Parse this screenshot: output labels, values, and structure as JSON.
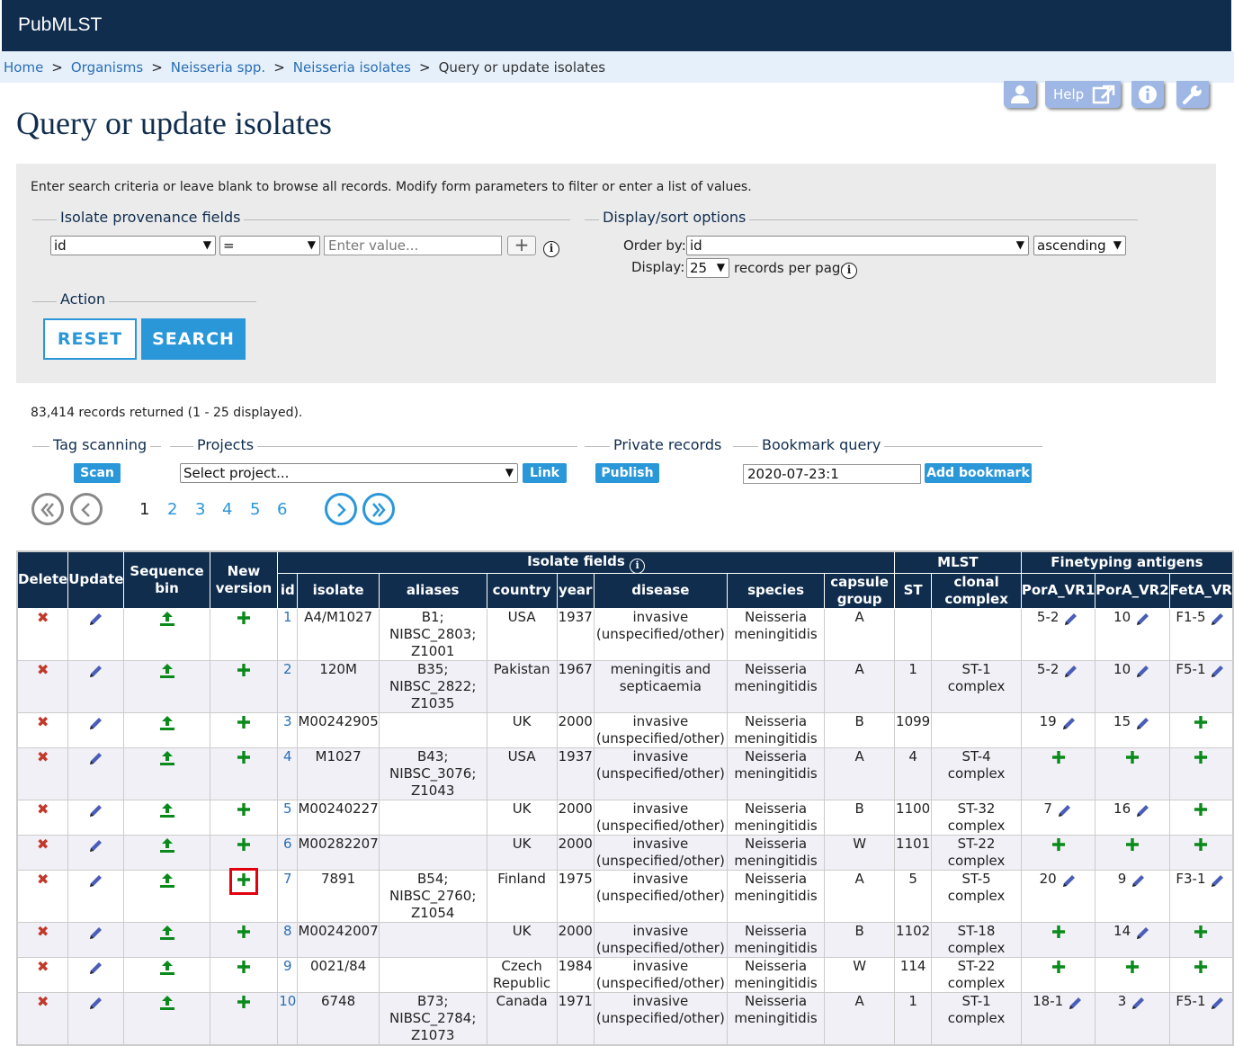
{
  "app": {
    "brand": "PubMLST"
  },
  "breadcrumb": {
    "items": [
      "Home",
      "Organisms",
      "Neisseria spp.",
      "Neisseria isolates"
    ],
    "current": "Query or update isolates"
  },
  "toolbar": {
    "help_label": "Help"
  },
  "page": {
    "title": "Query or update isolates"
  },
  "search_form": {
    "intro": "Enter search criteria or leave blank to browse all records. Modify form parameters to filter or enter a list of values.",
    "provenance_legend": "Isolate provenance fields",
    "field_select": "id",
    "operator_select": "=",
    "value_placeholder": "Enter value...",
    "display_legend": "Display/sort options",
    "order_by_label": "Order by:",
    "order_by_value": "id",
    "order_dir": "ascending",
    "display_label": "Display:",
    "display_value": "25",
    "records_per_page": "records per page",
    "action_legend": "Action",
    "reset_label": "RESET",
    "search_label": "SEARCH"
  },
  "results": {
    "count_text": "83,414 records returned (1 - 25 displayed).",
    "tag_scanning": {
      "legend": "Tag scanning",
      "button": "Scan"
    },
    "projects": {
      "legend": "Projects",
      "select": "Select project...",
      "button": "Link"
    },
    "private": {
      "legend": "Private records",
      "button": "Publish"
    },
    "bookmark": {
      "legend": "Bookmark query",
      "value": "2020-07-23:1",
      "button": "Add bookmark"
    },
    "pages": [
      "1",
      "2",
      "3",
      "4",
      "5",
      "6"
    ],
    "current_page": "1"
  },
  "table": {
    "headers": {
      "delete": "Delete",
      "update": "Update",
      "seqbin": "Sequence bin",
      "newver": "New version",
      "isolate_fields": "Isolate fields",
      "mlst": "MLST",
      "finetyping": "Finetyping antigens",
      "id": "id",
      "isolate": "isolate",
      "aliases": "aliases",
      "country": "country",
      "year": "year",
      "disease": "disease",
      "species": "species",
      "capsule": "capsule group",
      "st": "ST",
      "clonal": "clonal complex",
      "porA1": "PorA_VR1",
      "porA2": "PorA_VR2",
      "fetA": "FetA_VR"
    },
    "rows": [
      {
        "id": "1",
        "isolate": "A4/M1027",
        "aliases": "B1; NIBSC_2803; Z1001",
        "country": "USA",
        "year": "1937",
        "disease": "invasive (unspecified/other)",
        "species": "Neisseria meningitidis",
        "capsule": "A",
        "st": "",
        "cc": "",
        "p1": "5-2",
        "p2": "10",
        "f": "F1-5"
      },
      {
        "id": "2",
        "isolate": "120M",
        "aliases": "B35; NIBSC_2822; Z1035",
        "country": "Pakistan",
        "year": "1967",
        "disease": "meningitis and septicaemia",
        "species": "Neisseria meningitidis",
        "capsule": "A",
        "st": "1",
        "cc": "ST-1 complex",
        "p1": "5-2",
        "p2": "10",
        "f": "F5-1"
      },
      {
        "id": "3",
        "isolate": "M00242905",
        "aliases": "",
        "country": "UK",
        "year": "2000",
        "disease": "invasive (unspecified/other)",
        "species": "Neisseria meningitidis",
        "capsule": "B",
        "st": "1099",
        "cc": "",
        "p1": "19",
        "p2": "15",
        "f": ""
      },
      {
        "id": "4",
        "isolate": "M1027",
        "aliases": "B43; NIBSC_3076; Z1043",
        "country": "USA",
        "year": "1937",
        "disease": "invasive (unspecified/other)",
        "species": "Neisseria meningitidis",
        "capsule": "A",
        "st": "4",
        "cc": "ST-4 complex",
        "p1": "",
        "p2": "",
        "f": ""
      },
      {
        "id": "5",
        "isolate": "M00240227",
        "aliases": "",
        "country": "UK",
        "year": "2000",
        "disease": "invasive (unspecified/other)",
        "species": "Neisseria meningitidis",
        "capsule": "B",
        "st": "1100",
        "cc": "ST-32 complex",
        "p1": "7",
        "p2": "16",
        "f": ""
      },
      {
        "id": "6",
        "isolate": "M00282207",
        "aliases": "",
        "country": "UK",
        "year": "2000",
        "disease": "invasive (unspecified/other)",
        "species": "Neisseria meningitidis",
        "capsule": "W",
        "st": "1101",
        "cc": "ST-22 complex",
        "p1": "",
        "p2": "",
        "f": ""
      },
      {
        "id": "7",
        "isolate": "7891",
        "aliases": "B54; NIBSC_2760; Z1054",
        "country": "Finland",
        "year": "1975",
        "disease": "invasive (unspecified/other)",
        "species": "Neisseria meningitidis",
        "capsule": "A",
        "st": "5",
        "cc": "ST-5 complex",
        "p1": "20",
        "p2": "9",
        "f": "F3-1"
      },
      {
        "id": "8",
        "isolate": "M00242007",
        "aliases": "",
        "country": "UK",
        "year": "2000",
        "disease": "invasive (unspecified/other)",
        "species": "Neisseria meningitidis",
        "capsule": "B",
        "st": "1102",
        "cc": "ST-18 complex",
        "p1": "",
        "p2": "14",
        "f": ""
      },
      {
        "id": "9",
        "isolate": "0021/84",
        "aliases": "",
        "country": "Czech Republic",
        "year": "1984",
        "disease": "invasive (unspecified/other)",
        "species": "Neisseria meningitidis",
        "capsule": "W",
        "st": "114",
        "cc": "ST-22 complex",
        "p1": "",
        "p2": "",
        "f": ""
      },
      {
        "id": "10",
        "isolate": "6748",
        "aliases": "B73; NIBSC_2784; Z1073",
        "country": "Canada",
        "year": "1971",
        "disease": "invasive (unspecified/other)",
        "species": "Neisseria meningitidis",
        "capsule": "A",
        "st": "1",
        "cc": "ST-1 complex",
        "p1": "18-1",
        "p2": "3",
        "f": "F5-1"
      }
    ],
    "highlighted_row_id": "7"
  },
  "colors": {
    "navy": "#102d4e",
    "accent": "#2a97d9",
    "delete": "#c0392b",
    "green": "#0a8a1a",
    "highlight": "#e0000e"
  }
}
